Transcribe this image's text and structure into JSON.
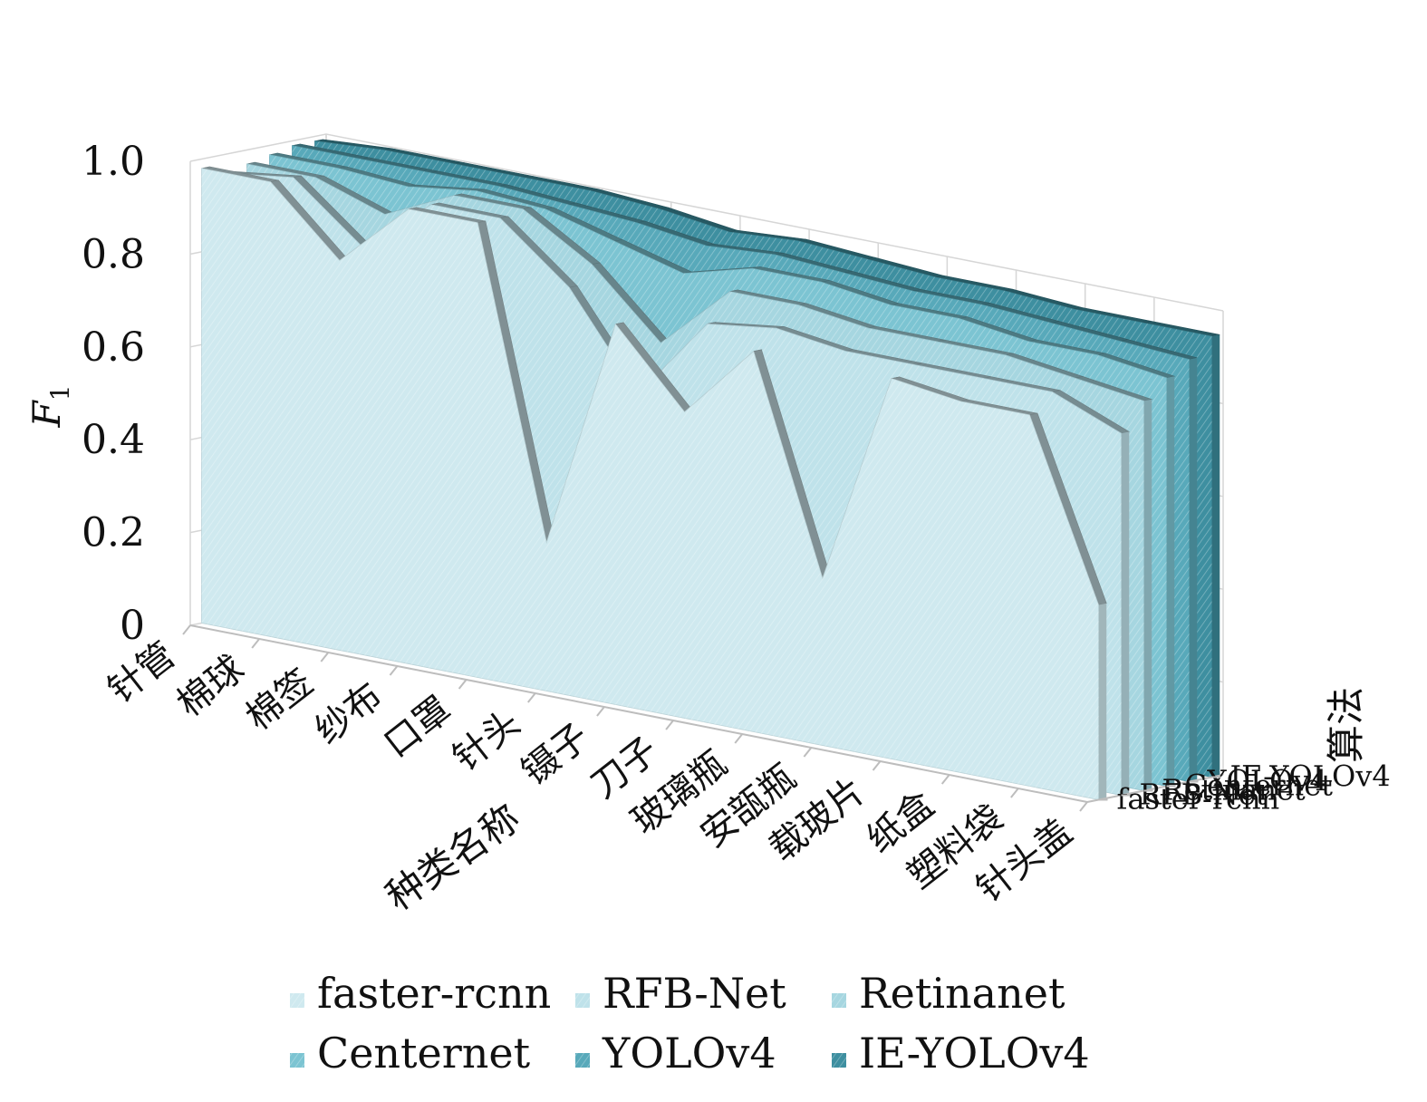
{
  "chart_data": {
    "type": "area",
    "subtype": "3d-area",
    "categories": [
      "针管",
      "棉球",
      "棉签",
      "纱布",
      "口罩",
      "针头",
      "镊子",
      "刀子",
      "玻璃瓶",
      "安瓿瓶",
      "载玻片",
      "纸盒",
      "塑料袋",
      "针头盖"
    ],
    "series": [
      {
        "name": "faster-rcnn",
        "color": "#cfe9ef",
        "values": [
          0.98,
          0.98,
          0.84,
          0.98,
          0.98,
          0.32,
          0.82,
          0.66,
          0.82,
          0.36,
          0.82,
          0.8,
          0.8,
          0.42
        ]
      },
      {
        "name": "RFB-Net",
        "color": "#bfe2ea",
        "values": [
          0.96,
          0.98,
          0.86,
          0.98,
          0.98,
          0.86,
          0.66,
          0.84,
          0.86,
          0.84,
          0.84,
          0.84,
          0.84,
          0.78
        ]
      },
      {
        "name": "Retinanet",
        "color": "#a6d6e0",
        "values": [
          0.97,
          0.97,
          0.92,
          0.99,
          0.99,
          0.9,
          0.76,
          0.9,
          0.9,
          0.88,
          0.88,
          0.88,
          0.86,
          0.84
        ]
      },
      {
        "name": "Centernet",
        "color": "#7cc4d2",
        "values": [
          0.98,
          0.98,
          0.97,
          0.99,
          0.98,
          0.94,
          0.9,
          0.94,
          0.94,
          0.92,
          0.92,
          0.9,
          0.9,
          0.88
        ]
      },
      {
        "name": "YOLOv4",
        "color": "#58a9ba",
        "values": [
          0.99,
          0.99,
          0.99,
          0.99,
          0.98,
          0.97,
          0.95,
          0.96,
          0.95,
          0.94,
          0.94,
          0.93,
          0.92,
          0.91
        ]
      },
      {
        "name": "IE-YOLOv4",
        "color": "#3e8fa0",
        "values": [
          0.99,
          1.0,
          1.0,
          1.0,
          1.0,
          0.99,
          0.97,
          0.98,
          0.97,
          0.96,
          0.96,
          0.95,
          0.95,
          0.95
        ]
      }
    ],
    "y_ticks": [
      "0",
      "0.2",
      "0.4",
      "0.6",
      "0.8",
      "1.0"
    ],
    "ylim": [
      0,
      1
    ],
    "ylabel": "F",
    "ylabel_sub": "1",
    "xlabel": "种类名称",
    "zlabel": "算法",
    "grid": true,
    "legend_position": "bottom"
  }
}
